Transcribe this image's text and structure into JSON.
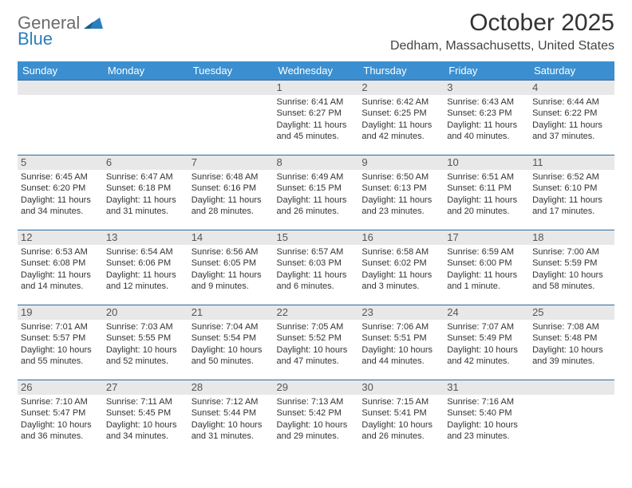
{
  "logo": {
    "textGray": "General",
    "textBlue": "Blue"
  },
  "title": "October 2025",
  "location": "Dedham, Massachusetts, United States",
  "colors": {
    "headerBg": "#3b8fd0",
    "dateBarBg": "#e8e8e8",
    "rowBorder": "#2a6aa0",
    "logoBlue": "#2a7fbf",
    "textGray": "#6b6b6b"
  },
  "daysOfWeek": [
    "Sunday",
    "Monday",
    "Tuesday",
    "Wednesday",
    "Thursday",
    "Friday",
    "Saturday"
  ],
  "weeks": [
    [
      {
        "date": "",
        "sunrise": "",
        "sunset": "",
        "daylight": ""
      },
      {
        "date": "",
        "sunrise": "",
        "sunset": "",
        "daylight": ""
      },
      {
        "date": "",
        "sunrise": "",
        "sunset": "",
        "daylight": ""
      },
      {
        "date": "1",
        "sunrise": "Sunrise: 6:41 AM",
        "sunset": "Sunset: 6:27 PM",
        "daylight": "Daylight: 11 hours and 45 minutes."
      },
      {
        "date": "2",
        "sunrise": "Sunrise: 6:42 AM",
        "sunset": "Sunset: 6:25 PM",
        "daylight": "Daylight: 11 hours and 42 minutes."
      },
      {
        "date": "3",
        "sunrise": "Sunrise: 6:43 AM",
        "sunset": "Sunset: 6:23 PM",
        "daylight": "Daylight: 11 hours and 40 minutes."
      },
      {
        "date": "4",
        "sunrise": "Sunrise: 6:44 AM",
        "sunset": "Sunset: 6:22 PM",
        "daylight": "Daylight: 11 hours and 37 minutes."
      }
    ],
    [
      {
        "date": "5",
        "sunrise": "Sunrise: 6:45 AM",
        "sunset": "Sunset: 6:20 PM",
        "daylight": "Daylight: 11 hours and 34 minutes."
      },
      {
        "date": "6",
        "sunrise": "Sunrise: 6:47 AM",
        "sunset": "Sunset: 6:18 PM",
        "daylight": "Daylight: 11 hours and 31 minutes."
      },
      {
        "date": "7",
        "sunrise": "Sunrise: 6:48 AM",
        "sunset": "Sunset: 6:16 PM",
        "daylight": "Daylight: 11 hours and 28 minutes."
      },
      {
        "date": "8",
        "sunrise": "Sunrise: 6:49 AM",
        "sunset": "Sunset: 6:15 PM",
        "daylight": "Daylight: 11 hours and 26 minutes."
      },
      {
        "date": "9",
        "sunrise": "Sunrise: 6:50 AM",
        "sunset": "Sunset: 6:13 PM",
        "daylight": "Daylight: 11 hours and 23 minutes."
      },
      {
        "date": "10",
        "sunrise": "Sunrise: 6:51 AM",
        "sunset": "Sunset: 6:11 PM",
        "daylight": "Daylight: 11 hours and 20 minutes."
      },
      {
        "date": "11",
        "sunrise": "Sunrise: 6:52 AM",
        "sunset": "Sunset: 6:10 PM",
        "daylight": "Daylight: 11 hours and 17 minutes."
      }
    ],
    [
      {
        "date": "12",
        "sunrise": "Sunrise: 6:53 AM",
        "sunset": "Sunset: 6:08 PM",
        "daylight": "Daylight: 11 hours and 14 minutes."
      },
      {
        "date": "13",
        "sunrise": "Sunrise: 6:54 AM",
        "sunset": "Sunset: 6:06 PM",
        "daylight": "Daylight: 11 hours and 12 minutes."
      },
      {
        "date": "14",
        "sunrise": "Sunrise: 6:56 AM",
        "sunset": "Sunset: 6:05 PM",
        "daylight": "Daylight: 11 hours and 9 minutes."
      },
      {
        "date": "15",
        "sunrise": "Sunrise: 6:57 AM",
        "sunset": "Sunset: 6:03 PM",
        "daylight": "Daylight: 11 hours and 6 minutes."
      },
      {
        "date": "16",
        "sunrise": "Sunrise: 6:58 AM",
        "sunset": "Sunset: 6:02 PM",
        "daylight": "Daylight: 11 hours and 3 minutes."
      },
      {
        "date": "17",
        "sunrise": "Sunrise: 6:59 AM",
        "sunset": "Sunset: 6:00 PM",
        "daylight": "Daylight: 11 hours and 1 minute."
      },
      {
        "date": "18",
        "sunrise": "Sunrise: 7:00 AM",
        "sunset": "Sunset: 5:59 PM",
        "daylight": "Daylight: 10 hours and 58 minutes."
      }
    ],
    [
      {
        "date": "19",
        "sunrise": "Sunrise: 7:01 AM",
        "sunset": "Sunset: 5:57 PM",
        "daylight": "Daylight: 10 hours and 55 minutes."
      },
      {
        "date": "20",
        "sunrise": "Sunrise: 7:03 AM",
        "sunset": "Sunset: 5:55 PM",
        "daylight": "Daylight: 10 hours and 52 minutes."
      },
      {
        "date": "21",
        "sunrise": "Sunrise: 7:04 AM",
        "sunset": "Sunset: 5:54 PM",
        "daylight": "Daylight: 10 hours and 50 minutes."
      },
      {
        "date": "22",
        "sunrise": "Sunrise: 7:05 AM",
        "sunset": "Sunset: 5:52 PM",
        "daylight": "Daylight: 10 hours and 47 minutes."
      },
      {
        "date": "23",
        "sunrise": "Sunrise: 7:06 AM",
        "sunset": "Sunset: 5:51 PM",
        "daylight": "Daylight: 10 hours and 44 minutes."
      },
      {
        "date": "24",
        "sunrise": "Sunrise: 7:07 AM",
        "sunset": "Sunset: 5:49 PM",
        "daylight": "Daylight: 10 hours and 42 minutes."
      },
      {
        "date": "25",
        "sunrise": "Sunrise: 7:08 AM",
        "sunset": "Sunset: 5:48 PM",
        "daylight": "Daylight: 10 hours and 39 minutes."
      }
    ],
    [
      {
        "date": "26",
        "sunrise": "Sunrise: 7:10 AM",
        "sunset": "Sunset: 5:47 PM",
        "daylight": "Daylight: 10 hours and 36 minutes."
      },
      {
        "date": "27",
        "sunrise": "Sunrise: 7:11 AM",
        "sunset": "Sunset: 5:45 PM",
        "daylight": "Daylight: 10 hours and 34 minutes."
      },
      {
        "date": "28",
        "sunrise": "Sunrise: 7:12 AM",
        "sunset": "Sunset: 5:44 PM",
        "daylight": "Daylight: 10 hours and 31 minutes."
      },
      {
        "date": "29",
        "sunrise": "Sunrise: 7:13 AM",
        "sunset": "Sunset: 5:42 PM",
        "daylight": "Daylight: 10 hours and 29 minutes."
      },
      {
        "date": "30",
        "sunrise": "Sunrise: 7:15 AM",
        "sunset": "Sunset: 5:41 PM",
        "daylight": "Daylight: 10 hours and 26 minutes."
      },
      {
        "date": "31",
        "sunrise": "Sunrise: 7:16 AM",
        "sunset": "Sunset: 5:40 PM",
        "daylight": "Daylight: 10 hours and 23 minutes."
      },
      {
        "date": "",
        "sunrise": "",
        "sunset": "",
        "daylight": ""
      }
    ]
  ]
}
